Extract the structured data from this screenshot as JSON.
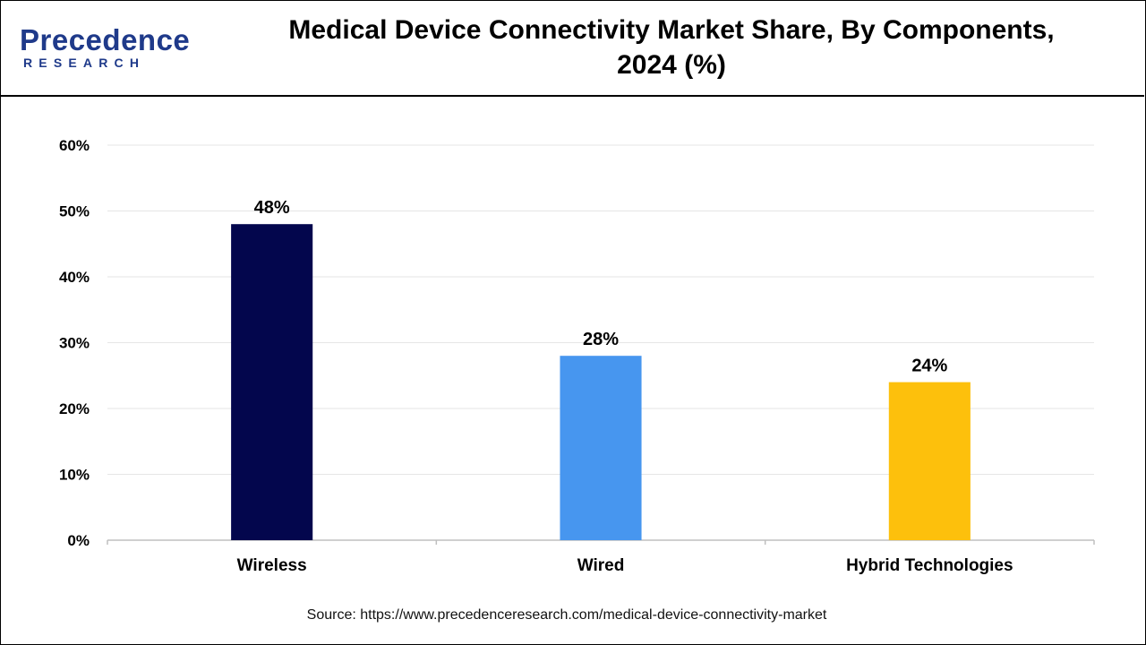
{
  "logo": {
    "word": "Precedence",
    "sub": "RESEARCH"
  },
  "title": {
    "line1": "Medical Device Connectivity Market Share, By Components,",
    "line2": "2024 (%)"
  },
  "source": "Source: https://www.precedenceresearch.com/medical-device-connectivity-market",
  "colors": {
    "brand": "#1f3a8a",
    "grid": "#e6e6e6",
    "axis": "#bfbfbf"
  },
  "chart_data": {
    "type": "bar",
    "title": "Medical Device Connectivity Market Share, By Components, 2024 (%)",
    "xlabel": "",
    "ylabel": "",
    "categories": [
      "Wireless",
      "Wired",
      "Hybrid Technologies"
    ],
    "values": [
      48,
      28,
      24
    ],
    "value_labels": [
      "48%",
      "28%",
      "24%"
    ],
    "bar_colors": [
      "#03064d",
      "#4796ef",
      "#fdc00c"
    ],
    "ylim": [
      0,
      60
    ],
    "yticks": [
      0,
      10,
      20,
      30,
      40,
      50,
      60
    ],
    "ytick_labels": [
      "0%",
      "10%",
      "20%",
      "30%",
      "40%",
      "50%",
      "60%"
    ],
    "grid": true,
    "legend": "none"
  }
}
